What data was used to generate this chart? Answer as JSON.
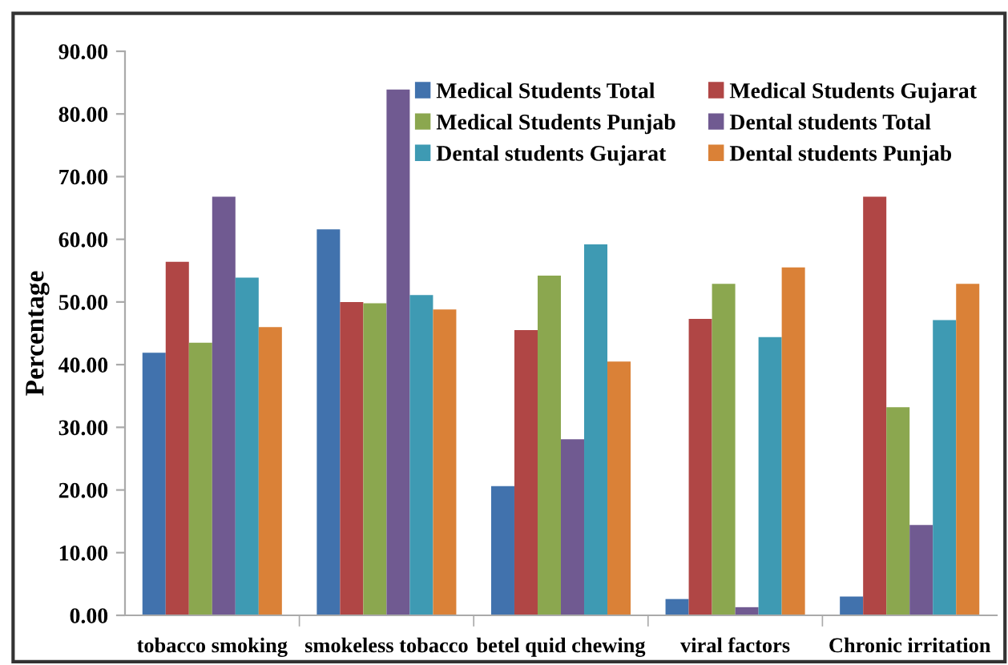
{
  "chart_data": {
    "type": "bar",
    "ylabel": "Percentage",
    "categories": [
      "tobacco smoking",
      "smokeless tobacco",
      "betel quid chewing",
      "viral factors",
      "Chronic irritation"
    ],
    "series": [
      {
        "name": "Medical Students Total",
        "color": "#4172ad",
        "values": [
          41.9,
          61.6,
          20.6,
          2.6,
          3.0
        ]
      },
      {
        "name": "Medical Students Gujarat",
        "color": "#b04645",
        "values": [
          56.4,
          50.0,
          45.5,
          47.3,
          66.8
        ]
      },
      {
        "name": "Medical Students Punjab",
        "color": "#8ba74f",
        "values": [
          43.5,
          49.8,
          54.2,
          52.9,
          33.2
        ]
      },
      {
        "name": "Dental students Total",
        "color": "#705a91",
        "values": [
          66.8,
          83.9,
          28.1,
          1.3,
          14.4
        ]
      },
      {
        "name": "Dental students Gujarat",
        "color": "#3e9ab3",
        "values": [
          53.9,
          51.1,
          59.2,
          44.4,
          47.1
        ]
      },
      {
        "name": "Dental students Punjab",
        "color": "#da8137",
        "values": [
          46.0,
          48.8,
          40.5,
          55.5,
          52.9
        ]
      }
    ],
    "ylim": [
      0,
      90
    ],
    "yticks": [
      {
        "value": 0,
        "label": "0.00"
      },
      {
        "value": 10,
        "label": "10.00"
      },
      {
        "value": 20,
        "label": "20.00"
      },
      {
        "value": 30,
        "label": "30.00"
      },
      {
        "value": 40,
        "label": "40.00"
      },
      {
        "value": 50,
        "label": "50.00"
      },
      {
        "value": 60,
        "label": "60.00"
      },
      {
        "value": 70,
        "label": "70.00"
      },
      {
        "value": 80,
        "label": "80.00"
      },
      {
        "value": 90,
        "label": "90.00"
      }
    ],
    "grid": false,
    "legend": "top right"
  }
}
